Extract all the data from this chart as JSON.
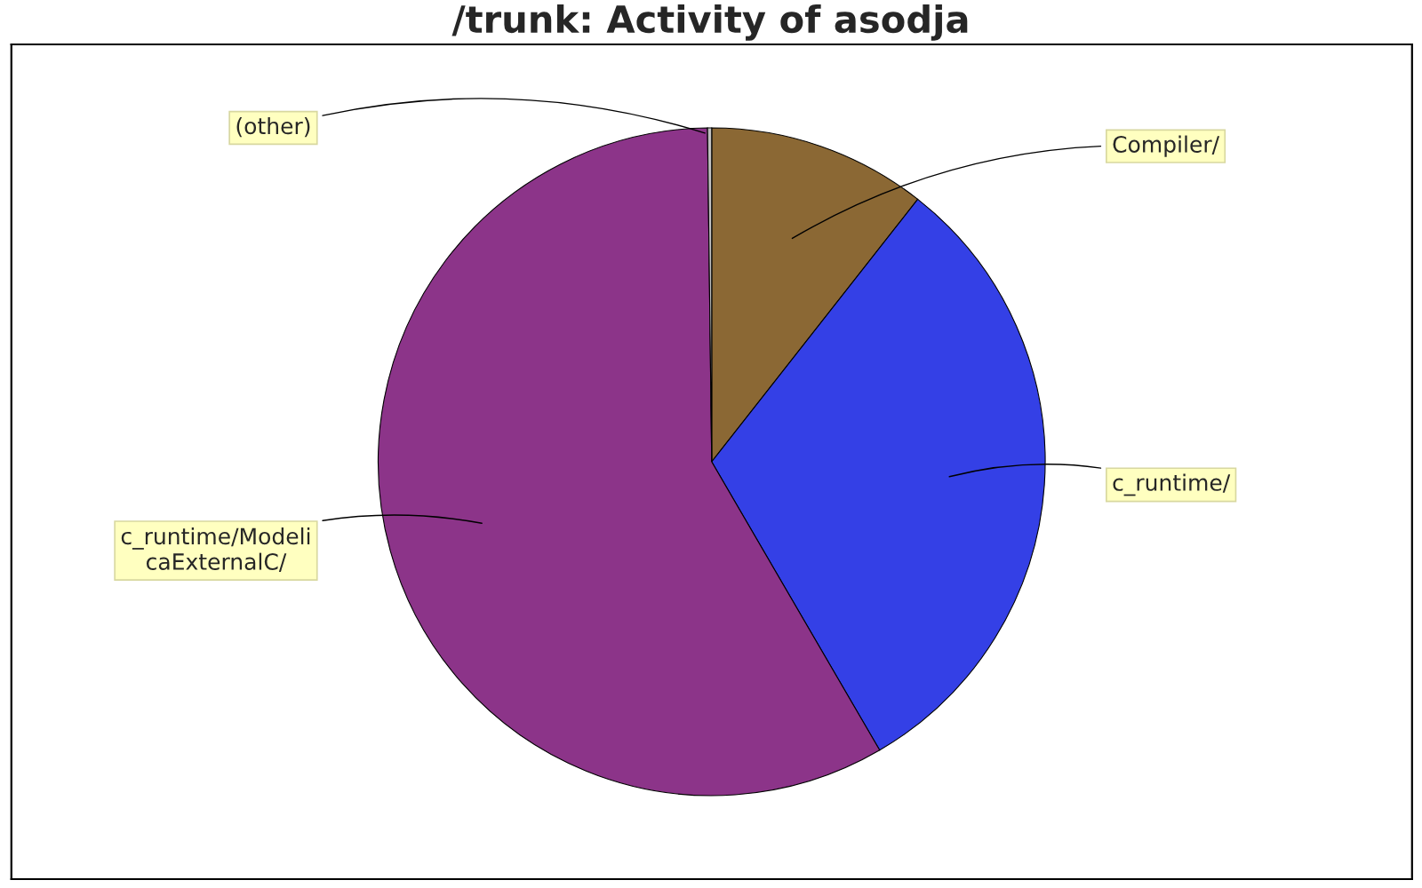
{
  "chart_data": {
    "type": "pie",
    "title": "/trunk: Activity of asodja",
    "categories": [
      "Compiler/",
      "c_runtime/",
      "c_runtime/Modeli\ncaExternalC/",
      "(other)"
    ],
    "values": [
      10.6,
      31.0,
      58.2,
      0.2
    ],
    "colors": [
      "#8b6834",
      "#3440e6",
      "#8c3489",
      "#c0c0c0"
    ]
  }
}
